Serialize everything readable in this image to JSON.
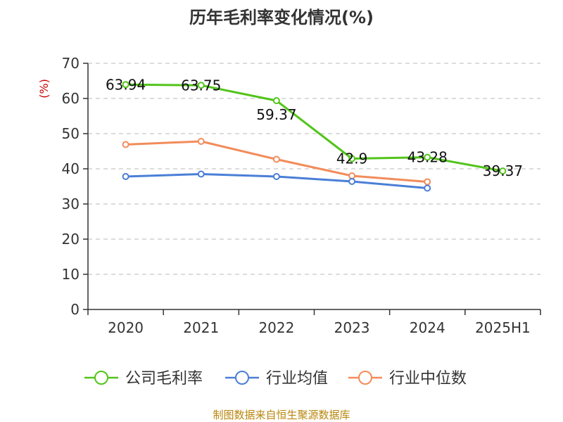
{
  "chart_data": {
    "type": "line",
    "title": "历年毛利率变化情况(%)",
    "unit_label": "(%)",
    "categories": [
      "2020",
      "2021",
      "2022",
      "2023",
      "2024",
      "2025H1"
    ],
    "ylim": [
      0,
      70
    ],
    "yticks": [
      0,
      10,
      20,
      30,
      40,
      50,
      60,
      70
    ],
    "grid": true,
    "legend_position": "bottom",
    "series": [
      {
        "name": "公司毛利率",
        "color": "#52c41a",
        "values": [
          63.94,
          63.75,
          59.37,
          42.9,
          43.28,
          39.37
        ],
        "data_labels": [
          "63.94",
          "63.75",
          "59.37",
          "42.9",
          "43.28",
          "39.37"
        ]
      },
      {
        "name": "行业均值",
        "color": "#4a7fd6",
        "values": [
          37.8,
          38.5,
          37.8,
          36.4,
          34.5,
          null
        ]
      },
      {
        "name": "行业中位数",
        "color": "#f28c5a",
        "values": [
          46.9,
          47.8,
          42.7,
          38.0,
          36.3,
          null
        ]
      }
    ]
  },
  "source_text": "制图数据来自恒生聚源数据库"
}
